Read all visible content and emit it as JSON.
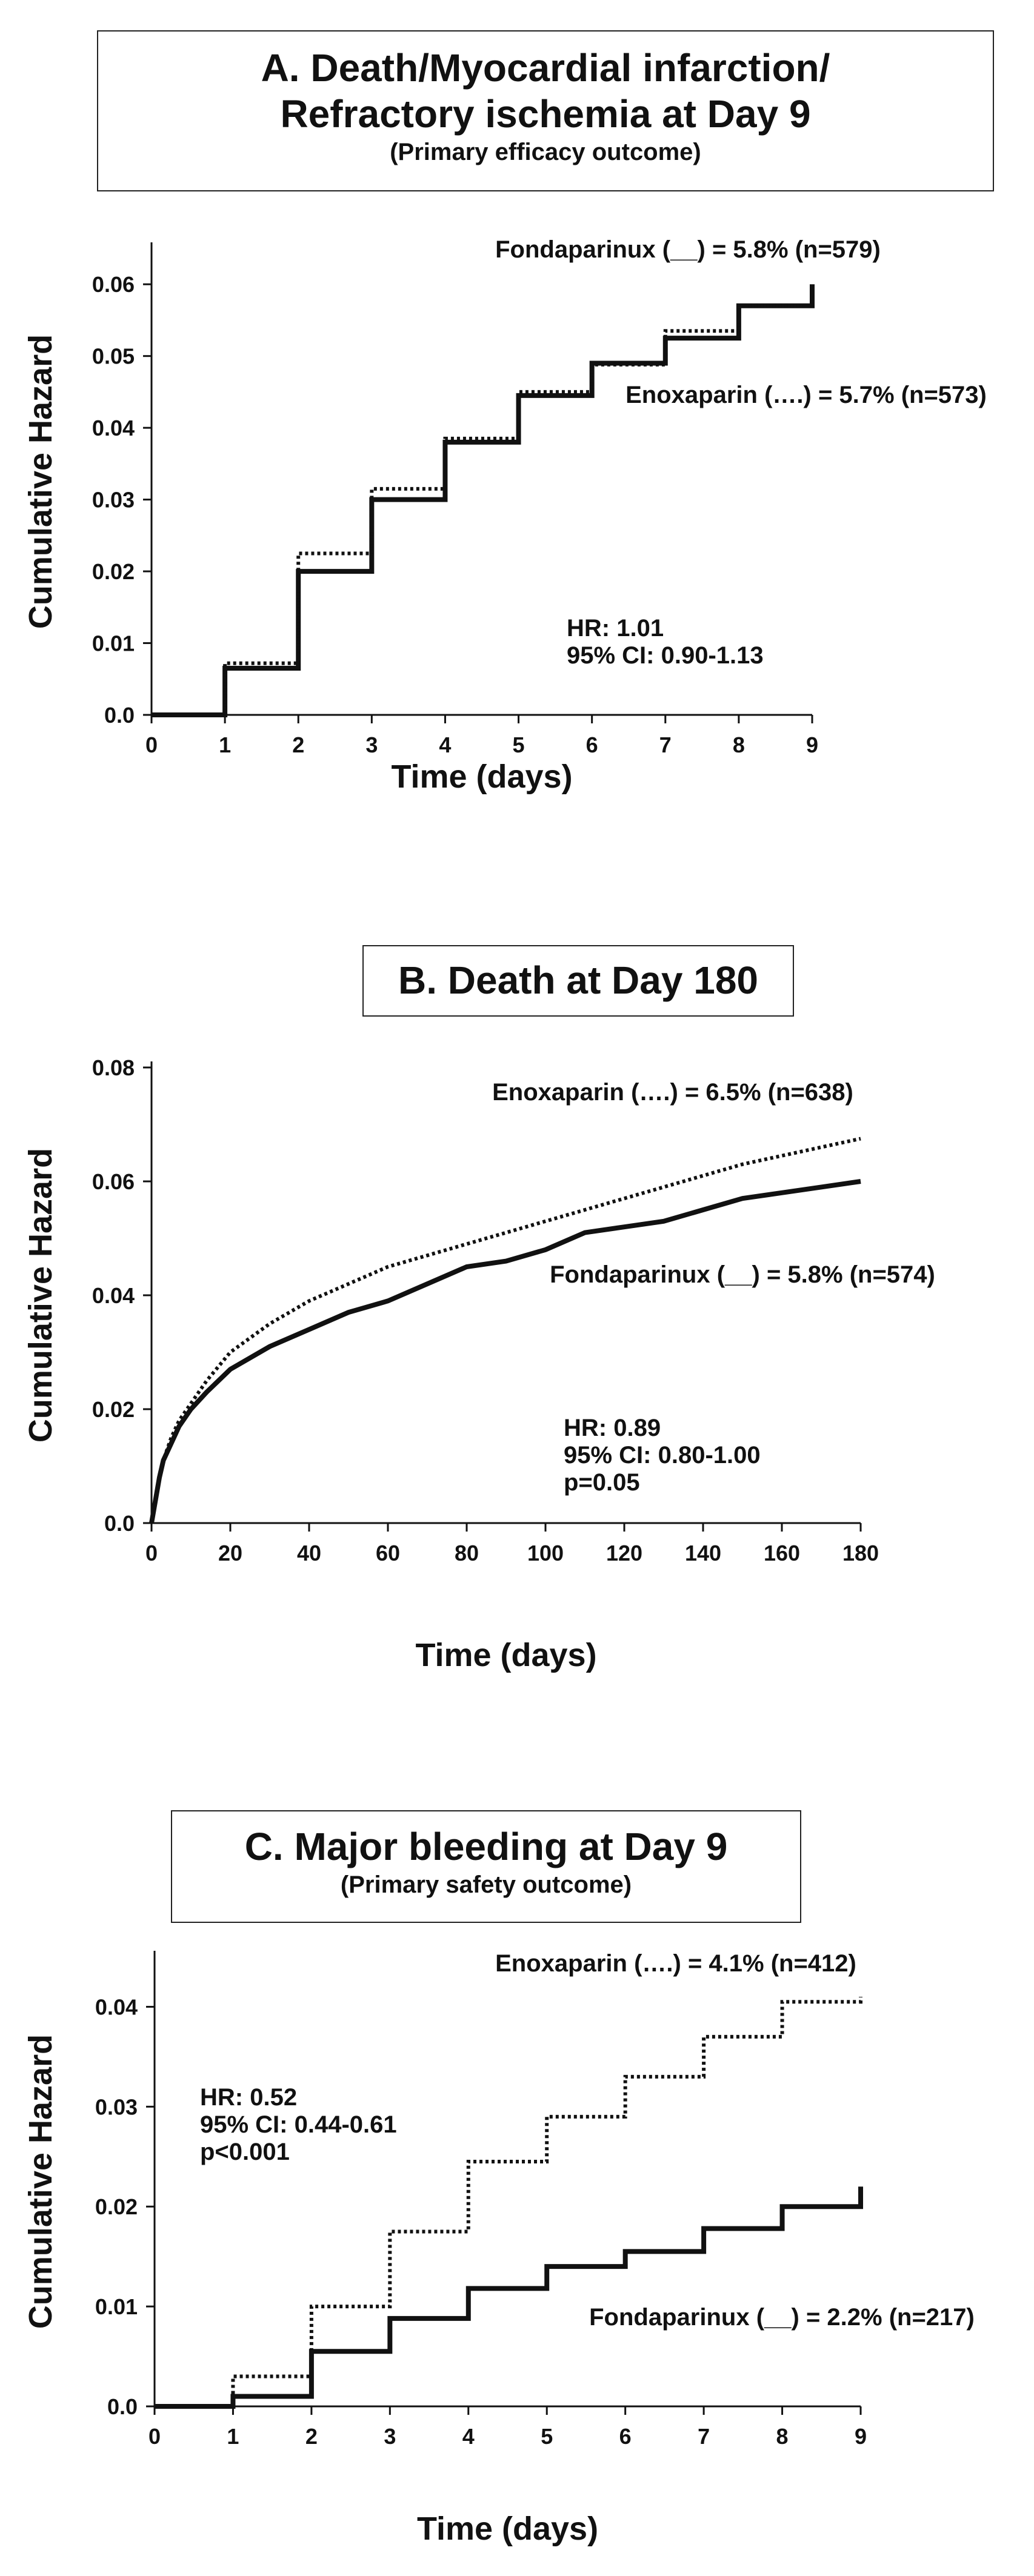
{
  "panels": {
    "a": {
      "title_line1": "A. Death/Myocardial infarction/",
      "title_line2": "Refractory ischemia at Day 9",
      "subtitle": "(Primary efficacy outcome)"
    },
    "b": {
      "title_line1": "B. Death at Day 180"
    },
    "c": {
      "title_line1": "C. Major bleeding at Day 9",
      "subtitle": "(Primary safety outcome)"
    }
  },
  "chart_data": [
    {
      "id": "a",
      "type": "line",
      "step": true,
      "title": "A. Death/Myocardial infarction/ Refractory ischemia at Day 9",
      "subtitle": "(Primary efficacy outcome)",
      "xlabel": "Time (days)",
      "ylabel": "Cumulative Hazard",
      "xlim": [
        0,
        9
      ],
      "ylim": [
        0,
        0.065
      ],
      "xticks": [
        "0",
        "1",
        "2",
        "3",
        "4",
        "5",
        "6",
        "7",
        "8",
        "9"
      ],
      "yticks": [
        "0.0",
        "0.01",
        "0.02",
        "0.03",
        "0.04",
        "0.05",
        "0.06"
      ],
      "grid": false,
      "series": [
        {
          "name": "Fondaparinux",
          "style": "solid",
          "x": [
            0,
            1,
            2,
            3,
            4,
            5,
            6,
            7,
            8,
            9
          ],
          "y": [
            0,
            0.0065,
            0.02,
            0.03,
            0.038,
            0.0445,
            0.049,
            0.0525,
            0.057,
            0.06
          ]
        },
        {
          "name": "Enoxaparin",
          "style": "dotted",
          "x": [
            0,
            1,
            2,
            3,
            4,
            5,
            6,
            7,
            8,
            9
          ],
          "y": [
            0,
            0.0072,
            0.0225,
            0.0315,
            0.0385,
            0.045,
            0.0488,
            0.0535,
            0.057,
            0.058
          ]
        }
      ],
      "annotations": {
        "fonda_label": "Fondaparinux (__) = 5.8% (n=579)",
        "enox_label": "Enoxaparin (….) = 5.7% (n=573)",
        "hr": "HR: 1.01",
        "ci": "95% CI: 0.90-1.13"
      }
    },
    {
      "id": "b",
      "type": "line",
      "step": false,
      "title": "B. Death at Day 180",
      "xlabel": "Time (days)",
      "ylabel": "Cumulative Hazard",
      "xlim": [
        0,
        180
      ],
      "ylim": [
        0,
        0.08
      ],
      "xticks": [
        "0",
        "20",
        "40",
        "60",
        "80",
        "100",
        "120",
        "140",
        "160",
        "180"
      ],
      "yticks": [
        "0.0",
        "0.02",
        "0.04",
        "0.06",
        "0.08"
      ],
      "grid": false,
      "series": [
        {
          "name": "Enoxaparin",
          "style": "dotted",
          "x": [
            0,
            1,
            2,
            3,
            5,
            7,
            10,
            14,
            20,
            30,
            40,
            50,
            60,
            70,
            80,
            90,
            100,
            110,
            120,
            130,
            140,
            150,
            160,
            170,
            180
          ],
          "y": [
            0,
            0.004,
            0.008,
            0.011,
            0.015,
            0.018,
            0.021,
            0.025,
            0.03,
            0.035,
            0.039,
            0.042,
            0.045,
            0.047,
            0.049,
            0.051,
            0.053,
            0.055,
            0.057,
            0.059,
            0.061,
            0.063,
            0.0645,
            0.066,
            0.0675
          ]
        },
        {
          "name": "Fondaparinux",
          "style": "solid",
          "x": [
            0,
            1,
            2,
            3,
            5,
            7,
            10,
            14,
            20,
            30,
            40,
            50,
            60,
            70,
            80,
            90,
            100,
            110,
            120,
            130,
            140,
            150,
            160,
            170,
            180
          ],
          "y": [
            0,
            0.004,
            0.008,
            0.011,
            0.014,
            0.017,
            0.02,
            0.023,
            0.027,
            0.031,
            0.034,
            0.037,
            0.039,
            0.042,
            0.045,
            0.046,
            0.048,
            0.051,
            0.052,
            0.053,
            0.055,
            0.057,
            0.058,
            0.059,
            0.06
          ]
        }
      ],
      "annotations": {
        "enox_label": "Enoxaparin (….) = 6.5% (n=638)",
        "fonda_label": "Fondaparinux (__) = 5.8% (n=574)",
        "hr": "HR: 0.89",
        "ci": "95% CI: 0.80-1.00",
        "p": "p=0.05"
      }
    },
    {
      "id": "c",
      "type": "line",
      "step": true,
      "title": "C. Major bleeding at Day 9",
      "subtitle": "(Primary safety outcome)",
      "xlabel": "Time (days)",
      "ylabel": "Cumulative Hazard",
      "xlim": [
        0,
        9
      ],
      "ylim": [
        0,
        0.045
      ],
      "xticks": [
        "0",
        "1",
        "2",
        "3",
        "4",
        "5",
        "6",
        "7",
        "8",
        "9"
      ],
      "yticks": [
        "0.0",
        "0.01",
        "0.02",
        "0.03",
        "0.04"
      ],
      "grid": false,
      "series": [
        {
          "name": "Enoxaparin",
          "style": "dotted",
          "x": [
            0,
            1,
            2,
            3,
            4,
            5,
            6,
            7,
            8,
            9
          ],
          "y": [
            0,
            0.003,
            0.01,
            0.0175,
            0.0245,
            0.029,
            0.033,
            0.037,
            0.0405,
            0.041
          ]
        },
        {
          "name": "Fondaparinux",
          "style": "solid",
          "x": [
            0,
            1,
            2,
            3,
            4,
            5,
            6,
            7,
            8,
            9
          ],
          "y": [
            0,
            0.001,
            0.0055,
            0.0088,
            0.0118,
            0.014,
            0.0155,
            0.0178,
            0.02,
            0.022
          ]
        }
      ],
      "annotations": {
        "enox_label": "Enoxaparin (….) = 4.1% (n=412)",
        "fonda_label": "Fondaparinux (__) = 2.2% (n=217)",
        "hr": "HR: 0.52",
        "ci": "95% CI: 0.44-0.61",
        "p": "p<0.001"
      }
    }
  ]
}
